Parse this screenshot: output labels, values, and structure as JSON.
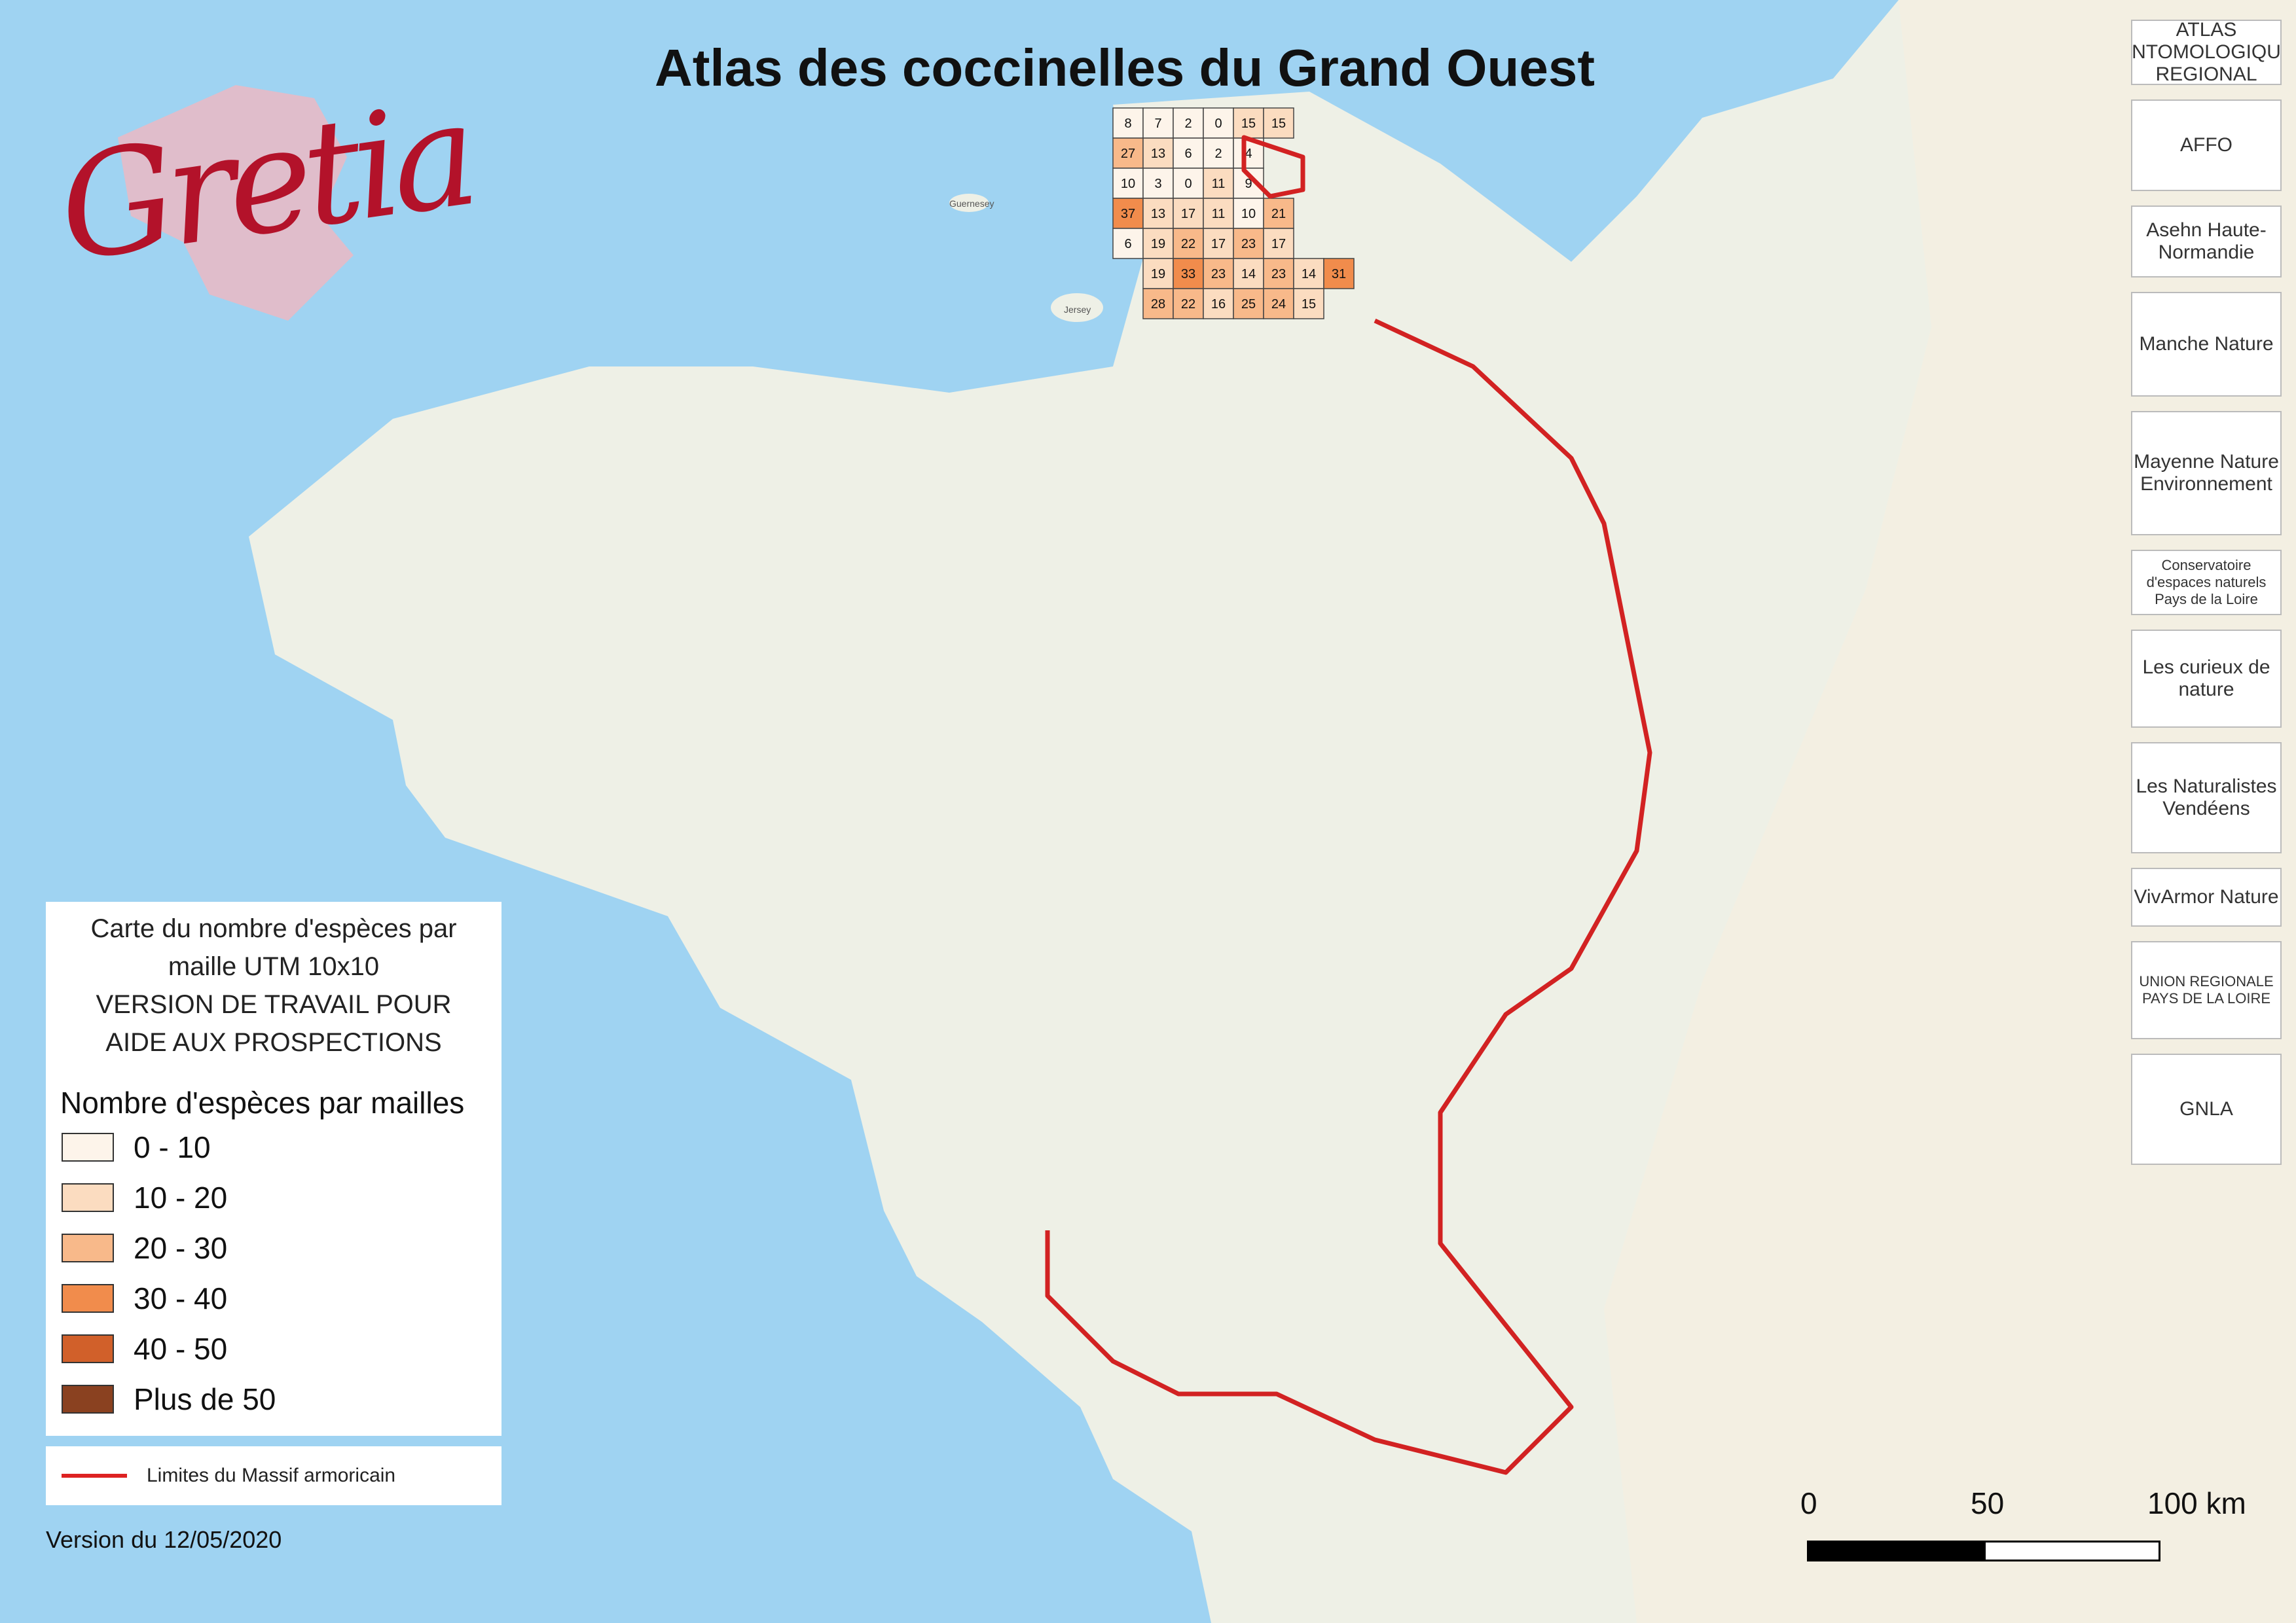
{
  "title": "Atlas des coccinelles du Grand Ouest",
  "logos": {
    "gretia": "Gretia",
    "right": [
      {
        "name": "atlas-entomologique-logo",
        "text": "ATLAS ENTOMOLOGIQUE REGIONAL"
      },
      {
        "name": "affo-logo",
        "text": "AFFO"
      },
      {
        "name": "asehn-logo",
        "text": "Asehn Haute-Normandie"
      },
      {
        "name": "manche-nature-logo",
        "text": "Manche Nature"
      },
      {
        "name": "mayenne-nature-environnement-logo",
        "text": "Mayenne Nature Environnement"
      },
      {
        "name": "cen-pays-de-la-loire-logo",
        "text": "Conservatoire d'espaces naturels Pays de la Loire"
      },
      {
        "name": "les-curieux-de-nature-logo",
        "text": "Les curieux de nature"
      },
      {
        "name": "naturalistes-vendeens-logo",
        "text": "Les Naturalistes Vendéens"
      },
      {
        "name": "vivarmor-nature-logo",
        "text": "VivArmor Nature"
      },
      {
        "name": "urcpie-logo",
        "text": "UNION REGIONALE PAYS DE LA LOIRE"
      },
      {
        "name": "gnla-logo",
        "text": "GNLA"
      }
    ]
  },
  "legend": {
    "heading_lines": [
      "Carte du nombre d'espèces par",
      "maille UTM 10x10",
      "VERSION DE TRAVAIL POUR",
      "AIDE AUX PROSPECTIONS"
    ],
    "classes_title": "Nombre d'espèces par mailles",
    "classes": [
      {
        "label": "0 - 10",
        "color": "#fdf4ea"
      },
      {
        "label": "10 - 20",
        "color": "#fbdcc0"
      },
      {
        "label": "20 - 30",
        "color": "#f8b98a"
      },
      {
        "label": "30 - 40",
        "color": "#f18c4c"
      },
      {
        "label": "40 - 50",
        "color": "#d1602a"
      },
      {
        "label": "Plus de 50",
        "color": "#8a4120"
      }
    ],
    "boundary_label": "Limites du Massif armoricain",
    "boundary_color": "#d22222"
  },
  "version": "Version du 12/05/2020",
  "scale_bar": {
    "labels": [
      "0",
      "50",
      "100 km"
    ]
  },
  "map_labels": [
    "Jersey",
    "Guernesey"
  ],
  "grid_sample": [
    {
      "r": 0,
      "c": 0,
      "v": 8
    },
    {
      "r": 0,
      "c": 1,
      "v": 7
    },
    {
      "r": 0,
      "c": 2,
      "v": 2
    },
    {
      "r": 0,
      "c": 3,
      "v": 0
    },
    {
      "r": 0,
      "c": 4,
      "v": 15
    },
    {
      "r": 0,
      "c": 5,
      "v": 15
    },
    {
      "r": 1,
      "c": 0,
      "v": 27
    },
    {
      "r": 1,
      "c": 1,
      "v": 13
    },
    {
      "r": 1,
      "c": 2,
      "v": 6
    },
    {
      "r": 1,
      "c": 3,
      "v": 2
    },
    {
      "r": 1,
      "c": 4,
      "v": 4
    },
    {
      "r": 2,
      "c": 0,
      "v": 10
    },
    {
      "r": 2,
      "c": 1,
      "v": 3
    },
    {
      "r": 2,
      "c": 2,
      "v": 0
    },
    {
      "r": 2,
      "c": 3,
      "v": 11
    },
    {
      "r": 2,
      "c": 4,
      "v": 9
    },
    {
      "r": 3,
      "c": 0,
      "v": 37
    },
    {
      "r": 3,
      "c": 1,
      "v": 13
    },
    {
      "r": 3,
      "c": 2,
      "v": 17
    },
    {
      "r": 3,
      "c": 3,
      "v": 11
    },
    {
      "r": 3,
      "c": 4,
      "v": 10
    },
    {
      "r": 3,
      "c": 5,
      "v": 21
    },
    {
      "r": 4,
      "c": 0,
      "v": 6
    },
    {
      "r": 4,
      "c": 1,
      "v": 19
    },
    {
      "r": 4,
      "c": 2,
      "v": 22
    },
    {
      "r": 4,
      "c": 3,
      "v": 17
    },
    {
      "r": 4,
      "c": 4,
      "v": 23
    },
    {
      "r": 4,
      "c": 5,
      "v": 17
    },
    {
      "r": 5,
      "c": 1,
      "v": 19
    },
    {
      "r": 5,
      "c": 2,
      "v": 33
    },
    {
      "r": 5,
      "c": 3,
      "v": 23
    },
    {
      "r": 5,
      "c": 4,
      "v": 14
    },
    {
      "r": 5,
      "c": 5,
      "v": 23
    },
    {
      "r": 5,
      "c": 6,
      "v": 14
    },
    {
      "r": 5,
      "c": 7,
      "v": 31
    },
    {
      "r": 6,
      "c": 1,
      "v": 28
    },
    {
      "r": 6,
      "c": 2,
      "v": 22
    },
    {
      "r": 6,
      "c": 3,
      "v": 16
    },
    {
      "r": 6,
      "c": 4,
      "v": 25
    },
    {
      "r": 6,
      "c": 5,
      "v": 24
    },
    {
      "r": 6,
      "c": 6,
      "v": 15
    }
  ]
}
